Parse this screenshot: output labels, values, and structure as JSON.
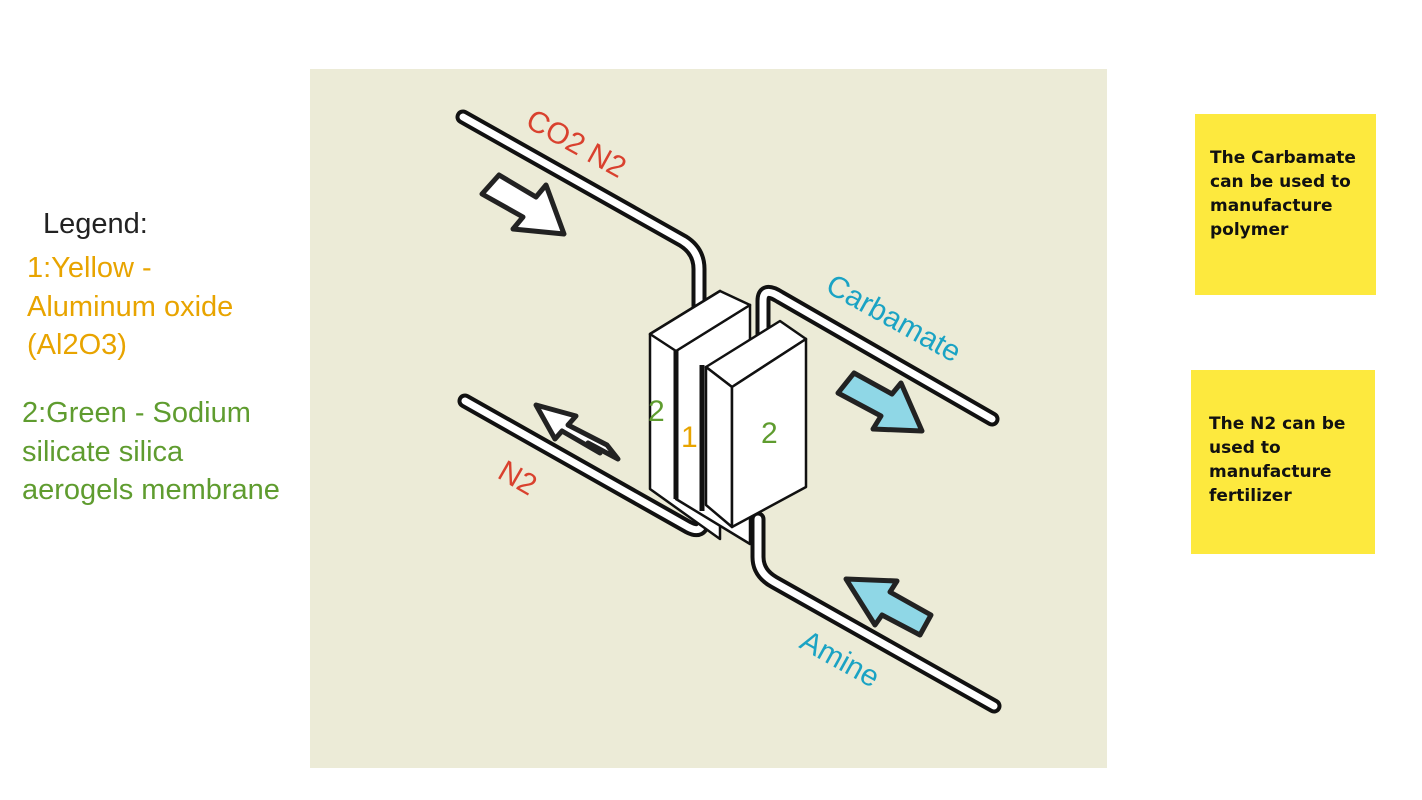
{
  "legend": {
    "title": "Legend:",
    "item1": "1:Yellow - Aluminum oxide (Al2O3)",
    "item2": "2:Green - Sodium silicate silica aerogels membrane"
  },
  "diagram": {
    "labels": {
      "inlet": "CO2 N2",
      "n2_outlet": "N2",
      "carbamate_outlet": "Carbamate",
      "amine_inlet": "Amine",
      "layer_green_left": "2",
      "layer_yellow": "1",
      "layer_green_right": "2"
    }
  },
  "notes": {
    "carbamate": "The Carbamate can be used to manufacture polymer",
    "n2": "The N2 can be used to manufacture fertilizer"
  },
  "colors": {
    "diagram_bg": "#ecebd7",
    "gas_label": "#d9412e",
    "liquid_label": "#1aa3c4",
    "yellow_layer": "#e8a400",
    "green_layer": "#5f9c2f",
    "white_arrow": "#ffffff",
    "cyan_arrow": "#8fd7e6",
    "note_bg": "#fde93e"
  }
}
